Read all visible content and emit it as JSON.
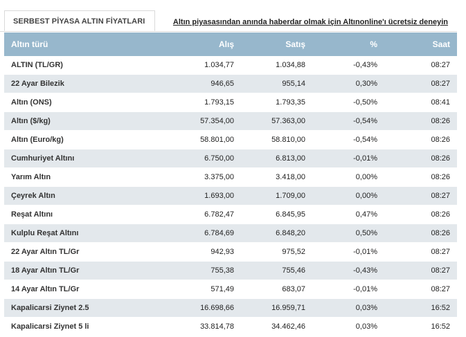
{
  "tab": {
    "label": "SERBEST PİYASA ALTIN FİYATLARI"
  },
  "promo": {
    "link_text": "Altın piyasasından anında haberdar olmak için Altınonline'ı ücretsiz deneyin"
  },
  "table": {
    "columns": [
      "Altın türü",
      "Alış",
      "Satış",
      "%",
      "Saat"
    ],
    "rows": [
      [
        "ALTIN (TL/GR)",
        "1.034,77",
        "1.034,88",
        "-0,43%",
        "08:27"
      ],
      [
        "22 Ayar Bilezik",
        "946,65",
        "955,14",
        "0,30%",
        "08:27"
      ],
      [
        "Altın (ONS)",
        "1.793,15",
        "1.793,35",
        "-0,50%",
        "08:41"
      ],
      [
        "Altın ($/kg)",
        "57.354,00",
        "57.363,00",
        "-0,54%",
        "08:26"
      ],
      [
        "Altın (Euro/kg)",
        "58.801,00",
        "58.810,00",
        "-0,54%",
        "08:26"
      ],
      [
        "Cumhuriyet Altını",
        "6.750,00",
        "6.813,00",
        "-0,01%",
        "08:26"
      ],
      [
        "Yarım Altın",
        "3.375,00",
        "3.418,00",
        "0,00%",
        "08:26"
      ],
      [
        "Çeyrek Altın",
        "1.693,00",
        "1.709,00",
        "0,00%",
        "08:27"
      ],
      [
        "Reşat Altını",
        "6.782,47",
        "6.845,95",
        "0,47%",
        "08:26"
      ],
      [
        "Kulplu Reşat Altını",
        "6.784,69",
        "6.848,20",
        "0,50%",
        "08:26"
      ],
      [
        "22 Ayar Altın TL/Gr",
        "942,93",
        "975,52",
        "-0,01%",
        "08:27"
      ],
      [
        "18 Ayar Altın TL/Gr",
        "755,38",
        "755,46",
        "-0,43%",
        "08:27"
      ],
      [
        "14 Ayar Altın TL/Gr",
        "571,49",
        "683,07",
        "-0,01%",
        "08:27"
      ],
      [
        "Kapalicarsi Ziynet 2.5",
        "16.698,66",
        "16.959,71",
        "0,03%",
        "16:52"
      ],
      [
        "Kapalicarsi Ziynet 5 li",
        "33.814,78",
        "34.462,46",
        "0,03%",
        "16:52"
      ]
    ]
  },
  "colors": {
    "header_bg": "#97b7cc",
    "stripe_bg": "#e3e8ec"
  }
}
